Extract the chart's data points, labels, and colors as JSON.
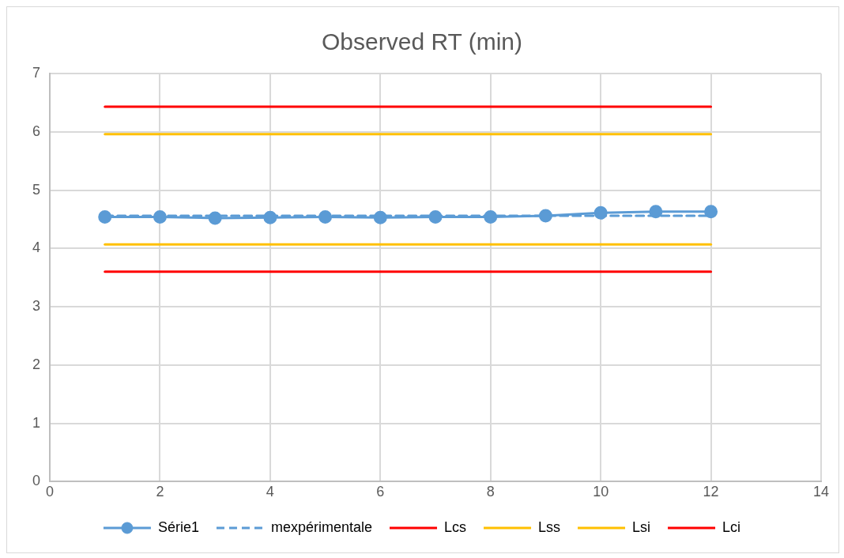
{
  "chart_data": {
    "type": "line",
    "title": "Observed RT (min)",
    "x": [
      1,
      2,
      3,
      4,
      5,
      6,
      7,
      8,
      9,
      10,
      11,
      12
    ],
    "series": [
      {
        "name": "Série1",
        "color": "#5b9bd5",
        "marker": "circle",
        "line_style": "solid",
        "values": [
          4.54,
          4.54,
          4.52,
          4.53,
          4.54,
          4.53,
          4.54,
          4.54,
          4.56,
          4.61,
          4.63,
          4.63
        ]
      },
      {
        "name": "mexpérimentale",
        "color": "#5b9bd5",
        "marker": "none",
        "line_style": "dashed",
        "values": [
          4.56,
          4.56,
          4.56,
          4.56,
          4.56,
          4.56,
          4.56,
          4.56,
          4.56,
          4.56,
          4.56,
          4.56
        ]
      },
      {
        "name": "Lcs",
        "color": "#ff0000",
        "marker": "none",
        "line_style": "solid",
        "values": [
          6.43,
          6.43,
          6.43,
          6.43,
          6.43,
          6.43,
          6.43,
          6.43,
          6.43,
          6.43,
          6.43,
          6.43
        ]
      },
      {
        "name": "Lss",
        "color": "#ffc000",
        "marker": "none",
        "line_style": "solid",
        "values": [
          5.96,
          5.96,
          5.96,
          5.96,
          5.96,
          5.96,
          5.96,
          5.96,
          5.96,
          5.96,
          5.96,
          5.96
        ]
      },
      {
        "name": "Lsi",
        "color": "#ffc000",
        "marker": "none",
        "line_style": "solid",
        "values": [
          4.07,
          4.07,
          4.07,
          4.07,
          4.07,
          4.07,
          4.07,
          4.07,
          4.07,
          4.07,
          4.07,
          4.07
        ]
      },
      {
        "name": "Lci",
        "color": "#ff0000",
        "marker": "none",
        "line_style": "solid",
        "values": [
          3.6,
          3.6,
          3.6,
          3.6,
          3.6,
          3.6,
          3.6,
          3.6,
          3.6,
          3.6,
          3.6,
          3.6
        ]
      }
    ],
    "xlim": [
      0,
      14
    ],
    "xticks": [
      0,
      2,
      4,
      6,
      8,
      10,
      12,
      14
    ],
    "ylim": [
      0,
      7
    ],
    "yticks": [
      0,
      1,
      2,
      3,
      4,
      5,
      6,
      7
    ],
    "grid": true,
    "legend": "bottom"
  }
}
